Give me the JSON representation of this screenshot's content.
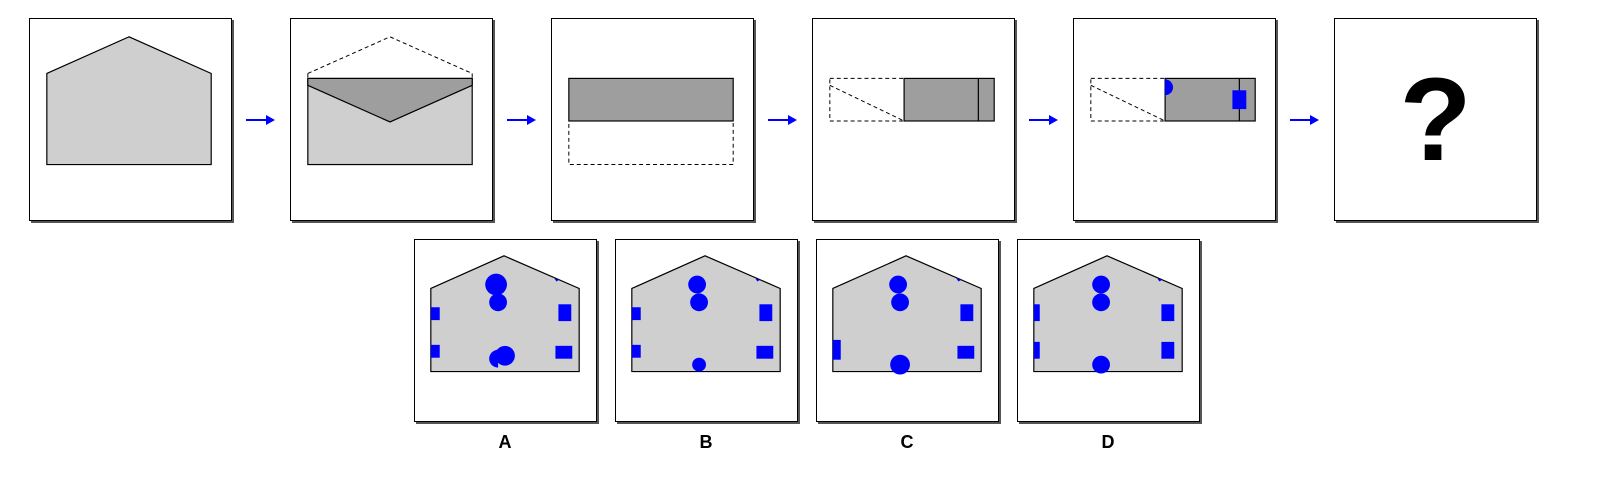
{
  "question": {
    "mark": "?"
  },
  "options": [
    {
      "label": "A"
    },
    {
      "label": "B"
    },
    {
      "label": "C"
    },
    {
      "label": "D"
    }
  ],
  "colors": {
    "paper": "#cfcfcf",
    "folded": "#9e9e9e",
    "hole": "#0000ff",
    "arrow": "#0000ff",
    "outline": "#000000"
  }
}
